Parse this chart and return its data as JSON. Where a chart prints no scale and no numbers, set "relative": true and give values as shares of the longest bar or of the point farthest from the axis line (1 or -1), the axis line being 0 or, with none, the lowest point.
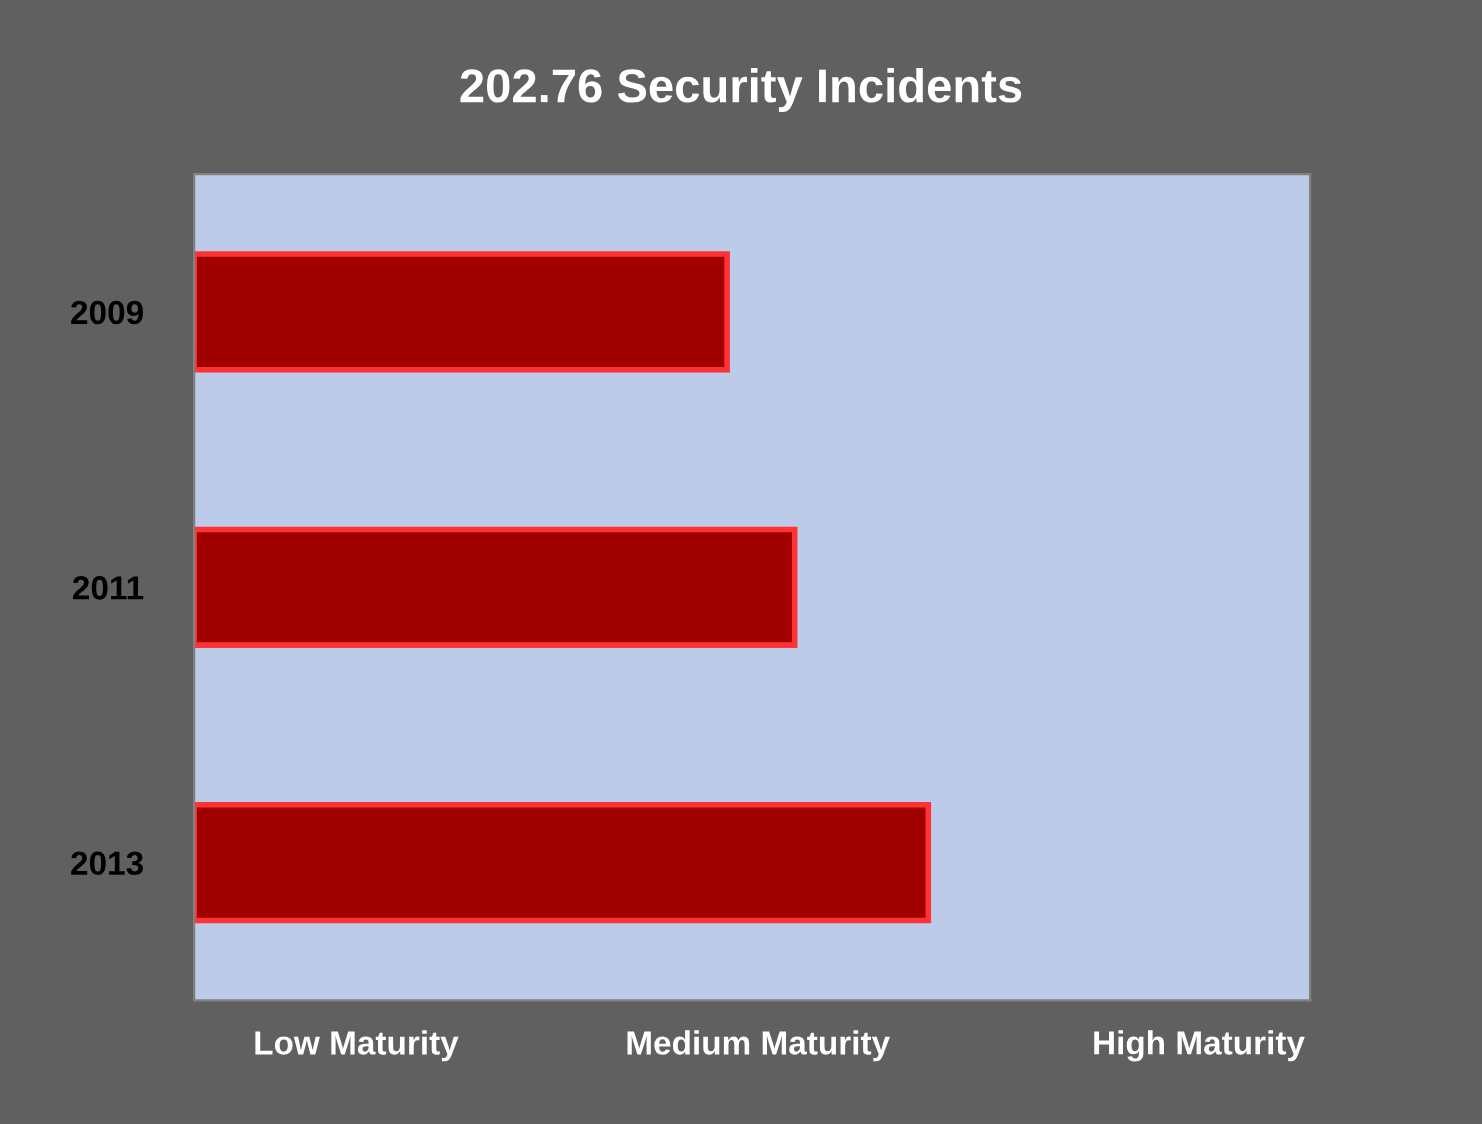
{
  "chart_data": {
    "type": "bar",
    "orientation": "horizontal",
    "relative": true,
    "title": "202.76 Security Incidents",
    "categories": [
      "2009",
      "2011",
      "2013"
    ],
    "values": [
      0.726,
      0.818,
      1
    ],
    "color": "#a00000",
    "annotations": [
      "Low Maturity",
      "Medium Maturity",
      "High Maturity"
    ],
    "grid": false,
    "legend": false
  }
}
